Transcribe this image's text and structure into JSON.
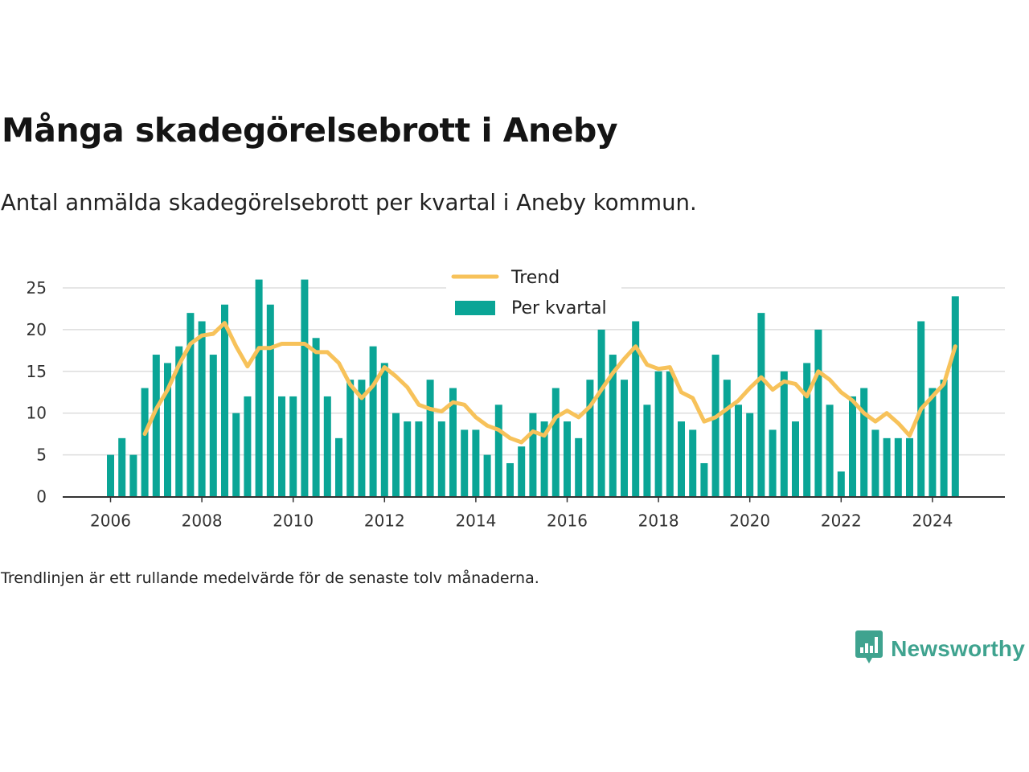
{
  "title": "Många skadegörelsebrott i Aneby",
  "subtitle": "Antal anmälda skadegörelsebrott per kvartal i Aneby kommun.",
  "footnote": "Trendlinjen är ett rullande medelvärde för de senaste tolv månaderna.",
  "brand": {
    "name": "Newsworthy",
    "icon": "newsworthy-logo-icon"
  },
  "colors": {
    "bars": "#0aa596",
    "trend": "#f7c25a",
    "grid": "#dddddd",
    "axis": "#333333"
  },
  "chart_data": {
    "type": "bar",
    "title": "",
    "xlabel": "",
    "ylabel": "",
    "ylim": [
      0,
      27
    ],
    "yticks": [
      "0",
      "5",
      "10",
      "15",
      "20",
      "25"
    ],
    "xticks": [
      "2006",
      "2008",
      "2010",
      "2012",
      "2014",
      "2016",
      "2018",
      "2020",
      "2022",
      "2024"
    ],
    "grid": true,
    "legend_position": "top-center",
    "series": [
      {
        "name": "Per kvartal",
        "kind": "bar",
        "values": [
          5,
          7,
          5,
          13,
          17,
          16,
          18,
          22,
          21,
          17,
          23,
          10,
          12,
          26,
          23,
          12,
          12,
          26,
          19,
          12,
          7,
          14,
          14,
          18,
          16,
          10,
          9,
          9,
          14,
          9,
          13,
          8,
          8,
          5,
          11,
          4,
          6,
          10,
          9,
          13,
          9,
          7,
          14,
          20,
          17,
          14,
          21,
          11,
          15,
          15,
          9,
          8,
          4,
          17,
          14,
          11,
          10,
          22,
          8,
          15,
          9,
          16,
          20,
          11,
          3,
          12,
          13,
          8,
          7,
          7,
          7,
          21,
          13,
          14,
          24
        ]
      },
      {
        "name": "Trend",
        "kind": "line",
        "start_index": 3,
        "values": [
          7.5,
          10.5,
          12.8,
          15.8,
          18.3,
          19.3,
          19.5,
          20.8,
          18,
          15.6,
          17.8,
          17.8,
          18.3,
          18.3,
          18.3,
          17.3,
          17.3,
          16.0,
          13.4,
          11.8,
          13.3,
          15.5,
          14.4,
          13.1,
          11.0,
          10.5,
          10.2,
          11.3,
          11.0,
          9.5,
          8.5,
          8.0,
          7.0,
          6.5,
          7.8,
          7.3,
          9.5,
          10.3,
          9.5,
          10.8,
          12.8,
          14.8,
          16.5,
          18.0,
          15.8,
          15.3,
          15.5,
          12.5,
          11.8,
          9.0,
          9.5,
          10.5,
          11.5,
          13.0,
          14.3,
          12.8,
          13.8,
          13.5,
          12.0,
          15.0,
          14.0,
          12.5,
          11.5,
          10.0,
          9.0,
          10.0,
          8.8,
          7.3,
          10.5,
          12.0,
          13.5,
          18.0
        ]
      }
    ]
  }
}
